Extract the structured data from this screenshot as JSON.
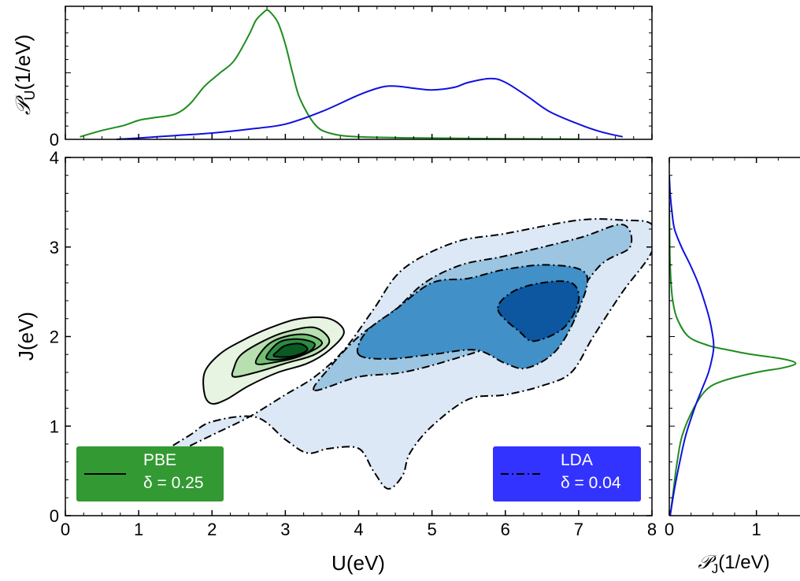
{
  "chart_data": [
    {
      "panel": "top-marginal",
      "type": "line",
      "ylabel_main": "𝒫",
      "ylabel_sub": "U",
      "ylabel_unit": "(1/eV)",
      "xlim": [
        0,
        8
      ],
      "y_ticklabel": "0",
      "colors": {
        "PBE": "#1e8c1e",
        "LDA": "#1010e0"
      },
      "series": [
        {
          "key": "PBE",
          "x": [
            0.2,
            0.5,
            0.8,
            1.0,
            1.2,
            1.5,
            1.7,
            1.9,
            2.1,
            2.3,
            2.5,
            2.6,
            2.7,
            2.75,
            2.8,
            2.9,
            3.0,
            3.1,
            3.2,
            3.4,
            3.6,
            4.0,
            5.0,
            6.0,
            7.0
          ],
          "y": [
            0.02,
            0.07,
            0.11,
            0.15,
            0.17,
            0.2,
            0.28,
            0.42,
            0.52,
            0.62,
            0.82,
            0.94,
            1.0,
            1.02,
            1.0,
            0.92,
            0.75,
            0.52,
            0.32,
            0.12,
            0.05,
            0.02,
            0.01,
            0.005,
            0.002
          ]
        },
        {
          "key": "LDA",
          "x": [
            0.7,
            1.0,
            1.5,
            2.0,
            2.5,
            3.0,
            3.5,
            4.0,
            4.3,
            4.5,
            4.8,
            5.0,
            5.3,
            5.5,
            5.8,
            6.0,
            6.3,
            6.6,
            7.0,
            7.3,
            7.6
          ],
          "y": [
            0.0,
            0.01,
            0.03,
            0.05,
            0.08,
            0.12,
            0.22,
            0.35,
            0.41,
            0.42,
            0.4,
            0.39,
            0.41,
            0.45,
            0.48,
            0.45,
            0.34,
            0.22,
            0.12,
            0.06,
            0.02
          ]
        }
      ]
    },
    {
      "panel": "main-joint",
      "type": "contour",
      "xlabel": "U(eV)",
      "ylabel": "J(eV)",
      "xlim": [
        0,
        8
      ],
      "ylim": [
        0,
        4
      ],
      "xticks": [
        "0",
        "1",
        "2",
        "3",
        "4",
        "5",
        "6",
        "7",
        "8"
      ],
      "yticks": [
        "0",
        "1",
        "2",
        "3",
        "4"
      ],
      "LDA_fills": [
        "#dce8f5",
        "#9cc5e1",
        "#4190c7",
        "#0d56a0"
      ],
      "PBE_fills": [
        "#e8f4e2",
        "#b8dfb0",
        "#72bf72",
        "#2b8a43",
        "#0a5a24"
      ],
      "LDA_contours": [
        [
          [
            0.5,
            0.55
          ],
          [
            1.0,
            0.5
          ],
          [
            1.5,
            0.7
          ],
          [
            2.0,
            0.9
          ],
          [
            2.5,
            1.1
          ],
          [
            3.0,
            1.35
          ],
          [
            3.4,
            1.55
          ],
          [
            3.8,
            1.85
          ],
          [
            4.2,
            2.3
          ],
          [
            4.6,
            2.75
          ],
          [
            5.3,
            3.05
          ],
          [
            6.0,
            3.15
          ],
          [
            7.0,
            3.3
          ],
          [
            7.6,
            3.3
          ],
          [
            8.0,
            3.25
          ],
          [
            8.0,
            2.95
          ],
          [
            7.6,
            2.5
          ],
          [
            7.2,
            2.0
          ],
          [
            6.9,
            1.6
          ],
          [
            6.5,
            1.45
          ],
          [
            6.0,
            1.35
          ],
          [
            5.5,
            1.3
          ],
          [
            5.0,
            1.0
          ],
          [
            4.7,
            0.7
          ],
          [
            4.6,
            0.45
          ],
          [
            4.4,
            0.3
          ],
          [
            4.2,
            0.5
          ],
          [
            4.0,
            0.75
          ],
          [
            3.6,
            0.75
          ],
          [
            3.3,
            0.7
          ],
          [
            3.0,
            0.85
          ],
          [
            2.6,
            1.1
          ],
          [
            2.0,
            1.05
          ],
          [
            1.7,
            0.9
          ],
          [
            1.4,
            0.75
          ],
          [
            1.0,
            0.55
          ]
        ],
        [
          [
            3.4,
            1.4
          ],
          [
            4.0,
            1.55
          ],
          [
            4.6,
            1.6
          ],
          [
            5.3,
            1.75
          ],
          [
            6.2,
            2.0
          ],
          [
            6.8,
            2.3
          ],
          [
            7.3,
            2.8
          ],
          [
            7.7,
            3.0
          ],
          [
            7.6,
            3.25
          ],
          [
            7.0,
            3.1
          ],
          [
            6.0,
            2.9
          ],
          [
            5.4,
            2.8
          ],
          [
            4.9,
            2.6
          ],
          [
            4.5,
            2.3
          ],
          [
            4.0,
            2.0
          ],
          [
            3.6,
            1.65
          ]
        ],
        [
          [
            4.0,
            1.8
          ],
          [
            4.4,
            1.75
          ],
          [
            5.0,
            1.8
          ],
          [
            5.6,
            1.85
          ],
          [
            6.0,
            1.7
          ],
          [
            6.3,
            1.65
          ],
          [
            6.7,
            1.85
          ],
          [
            7.0,
            2.3
          ],
          [
            7.1,
            2.7
          ],
          [
            6.6,
            2.8
          ],
          [
            6.0,
            2.75
          ],
          [
            5.5,
            2.65
          ],
          [
            5.0,
            2.6
          ],
          [
            4.5,
            2.3
          ],
          [
            4.1,
            2.05
          ]
        ],
        [
          [
            5.9,
            2.3
          ],
          [
            6.2,
            2.05
          ],
          [
            6.4,
            1.95
          ],
          [
            6.8,
            2.1
          ],
          [
            7.0,
            2.4
          ],
          [
            6.9,
            2.6
          ],
          [
            6.5,
            2.6
          ],
          [
            6.1,
            2.5
          ]
        ]
      ],
      "PBE_contours": [
        [
          [
            2.0,
            1.25
          ],
          [
            2.2,
            1.3
          ],
          [
            2.5,
            1.45
          ],
          [
            2.9,
            1.6
          ],
          [
            3.3,
            1.7
          ],
          [
            3.6,
            1.85
          ],
          [
            3.8,
            2.05
          ],
          [
            3.6,
            2.2
          ],
          [
            3.2,
            2.2
          ],
          [
            2.8,
            2.1
          ],
          [
            2.4,
            1.95
          ],
          [
            2.1,
            1.8
          ],
          [
            1.9,
            1.6
          ],
          [
            1.9,
            1.35
          ]
        ],
        [
          [
            2.3,
            1.55
          ],
          [
            2.6,
            1.6
          ],
          [
            3.0,
            1.7
          ],
          [
            3.4,
            1.8
          ],
          [
            3.6,
            1.95
          ],
          [
            3.4,
            2.1
          ],
          [
            3.0,
            2.05
          ],
          [
            2.7,
            1.95
          ],
          [
            2.4,
            1.8
          ],
          [
            2.3,
            1.65
          ]
        ],
        [
          [
            2.6,
            1.7
          ],
          [
            2.9,
            1.72
          ],
          [
            3.2,
            1.78
          ],
          [
            3.5,
            1.92
          ],
          [
            3.3,
            2.02
          ],
          [
            3.0,
            2.0
          ],
          [
            2.75,
            1.9
          ]
        ],
        [
          [
            2.75,
            1.75
          ],
          [
            3.0,
            1.75
          ],
          [
            3.3,
            1.82
          ],
          [
            3.4,
            1.92
          ],
          [
            3.2,
            1.97
          ],
          [
            2.95,
            1.95
          ],
          [
            2.8,
            1.85
          ]
        ],
        [
          [
            2.85,
            1.78
          ],
          [
            3.1,
            1.78
          ],
          [
            3.3,
            1.85
          ],
          [
            3.2,
            1.92
          ],
          [
            3.0,
            1.9
          ],
          [
            2.9,
            1.84
          ]
        ]
      ],
      "legend_PBE": {
        "name": "PBE",
        "delta": "δ = 0.25",
        "color": "#339933",
        "placement": "bottom-left"
      },
      "legend_LDA": {
        "name": "LDA",
        "delta": "δ = 0.04",
        "color": "#3333ff",
        "placement": "bottom-right"
      }
    },
    {
      "panel": "right-marginal",
      "type": "line",
      "xlabel_main": "𝒫",
      "xlabel_sub": "J",
      "xlabel_unit": "(1/eV)",
      "xticks": [
        "0",
        "1"
      ],
      "ylim": [
        0,
        4
      ],
      "series": [
        {
          "key": "PBE",
          "y": [
            0.0,
            0.3,
            0.6,
            0.9,
            1.2,
            1.4,
            1.5,
            1.6,
            1.65,
            1.7,
            1.75,
            1.8,
            1.85,
            1.9,
            2.0,
            2.2,
            2.4,
            2.6,
            2.8,
            3.0,
            3.5
          ],
          "x": [
            0.01,
            0.05,
            0.09,
            0.15,
            0.28,
            0.42,
            0.6,
            1.0,
            1.3,
            1.45,
            1.3,
            0.95,
            0.68,
            0.45,
            0.22,
            0.09,
            0.04,
            0.02,
            0.01,
            0.005,
            0.0
          ]
        },
        {
          "key": "LDA",
          "y": [
            0.0,
            0.3,
            0.6,
            0.9,
            1.2,
            1.4,
            1.6,
            1.8,
            1.9,
            2.0,
            2.2,
            2.4,
            2.6,
            2.8,
            3.0,
            3.2,
            3.4,
            3.6,
            3.8
          ],
          "x": [
            0.01,
            0.06,
            0.12,
            0.19,
            0.29,
            0.37,
            0.45,
            0.5,
            0.51,
            0.5,
            0.46,
            0.4,
            0.33,
            0.24,
            0.14,
            0.06,
            0.03,
            0.01,
            0.0
          ]
        }
      ]
    }
  ]
}
